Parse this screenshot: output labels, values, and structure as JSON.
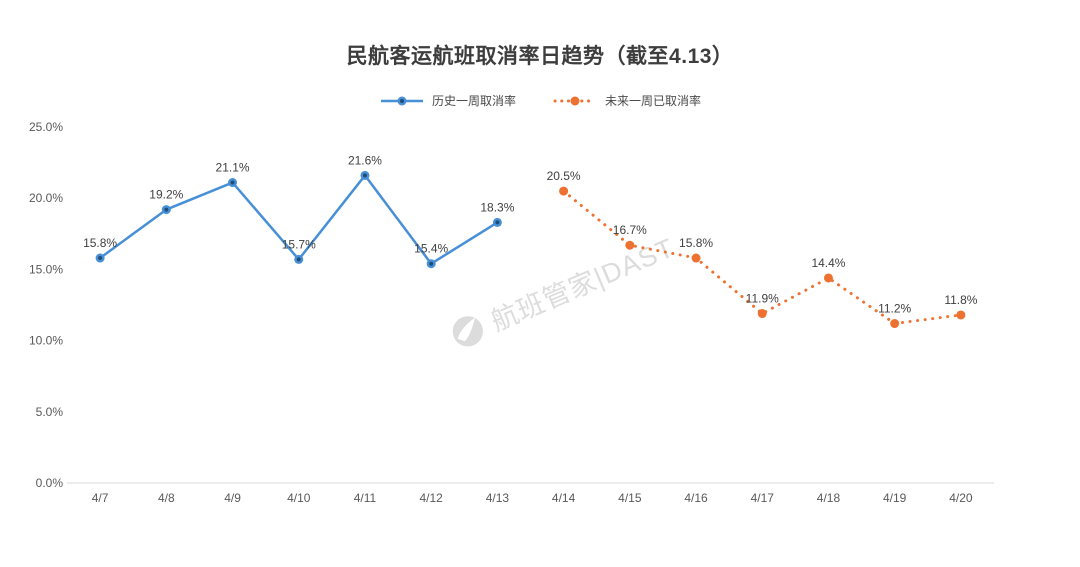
{
  "title": "民航客运航班取消率日趋势（截至4.13）",
  "legend": {
    "items": [
      {
        "label": "历史一周取消率",
        "color": "#478FD6",
        "line_style": "solid"
      },
      {
        "label": "未来一周已取消率",
        "color": "#ED7231",
        "line_style": "dotted"
      }
    ]
  },
  "watermark": {
    "text": "航班管家|DAST"
  },
  "chart_data": {
    "type": "line",
    "title": "民航客运航班取消率日趋势（截至4.13）",
    "xlabel": "",
    "ylabel": "",
    "ylim": [
      0,
      25
    ],
    "grid": false,
    "legend_position": "top",
    "categories": [
      "4/7",
      "4/8",
      "4/9",
      "4/10",
      "4/11",
      "4/12",
      "4/13",
      "4/14",
      "4/15",
      "4/16",
      "4/17",
      "4/18",
      "4/19",
      "4/20"
    ],
    "y_ticks": [
      {
        "label": "0.0%",
        "value": 0
      },
      {
        "label": "5.0%",
        "value": 5
      },
      {
        "label": "10.0%",
        "value": 10
      },
      {
        "label": "15.0%",
        "value": 15
      },
      {
        "label": "20.0%",
        "value": 20
      },
      {
        "label": "25.0%",
        "value": 25
      }
    ],
    "series": [
      {
        "name": "历史一周取消率",
        "color": "#478FD6",
        "marker_core_color": "#1F4E79",
        "line_style": "solid",
        "start_index": 0,
        "values": [
          15.8,
          19.2,
          21.1,
          15.7,
          21.6,
          15.4,
          18.3
        ],
        "labels": [
          "15.8%",
          "19.2%",
          "21.1%",
          "15.7%",
          "21.6%",
          "15.4%",
          "18.3%"
        ]
      },
      {
        "name": "未来一周已取消率",
        "color": "#ED7231",
        "marker_core_color": null,
        "line_style": "dotted",
        "start_index": 7,
        "values": [
          20.5,
          16.7,
          15.8,
          11.9,
          14.4,
          11.2,
          11.8
        ],
        "labels": [
          "20.5%",
          "16.7%",
          "15.8%",
          "11.9%",
          "14.4%",
          "11.2%",
          "11.8%"
        ]
      }
    ],
    "axis_color": "#D9D9D9",
    "tick_label_color": "#595959",
    "data_label_color": "#404040"
  }
}
